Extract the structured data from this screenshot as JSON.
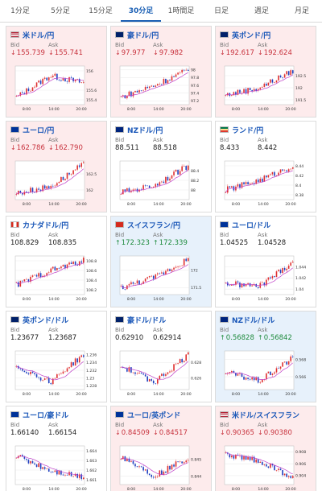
{
  "tabs": [
    {
      "label": "1分足",
      "active": false
    },
    {
      "label": "5分足",
      "active": false
    },
    {
      "label": "15分足",
      "active": false
    },
    {
      "label": "30分足",
      "active": true
    },
    {
      "label": "1時間足",
      "active": false
    },
    {
      "label": "日足",
      "active": false
    },
    {
      "label": "週足",
      "active": false
    },
    {
      "label": "月足",
      "active": false
    }
  ],
  "labels": {
    "bid": "Bid",
    "ask": "Ask"
  },
  "colors": {
    "down_bg": "#fdebec",
    "up_bg": "#e7f1fb",
    "down": "#c8333e",
    "up": "#1f8b3e",
    "ma": "#c040c8",
    "link": "#1a57b8"
  },
  "pairs": [
    {
      "name": "米ドル/円",
      "flag": "us-flag-icon",
      "state": "down",
      "bid": "155.739",
      "ask": "155.741",
      "chart": {
        "y_ticks": [
          "156",
          "155.6",
          "155.4"
        ],
        "x_ticks": [
          "8:00",
          "14:00",
          "20:00"
        ],
        "ylim": [
          155.3,
          156.1
        ],
        "trend": [
          155.45,
          155.9,
          155.75
        ],
        "ma": true
      }
    },
    {
      "name": "豪ドル/円",
      "flag": "au-flag-icon",
      "state": "down",
      "bid": "97.977",
      "ask": "97.982",
      "chart": {
        "y_ticks": [
          "98",
          "97.8",
          "97.6",
          "97.4",
          "97.2"
        ],
        "x_ticks": [
          "8:00",
          "14:00",
          "20:00"
        ],
        "ylim": [
          97.1,
          98.1
        ],
        "trend": [
          97.3,
          97.6,
          98.0
        ],
        "ma": true
      }
    },
    {
      "name": "英ポンド/円",
      "flag": "uk-flag-icon",
      "state": "down",
      "bid": "192.617",
      "ask": "192.624",
      "chart": {
        "y_ticks": [
          "192.5",
          "192",
          "191.5"
        ],
        "x_ticks": [
          "8:00",
          "14:00",
          "20:00"
        ],
        "ylim": [
          191.3,
          192.9
        ],
        "trend": [
          191.7,
          192.0,
          192.7
        ],
        "ma": true
      }
    },
    {
      "name": "ユーロ/円",
      "flag": "eu-flag-icon",
      "state": "down",
      "bid": "162.786",
      "ask": "162.790",
      "chart": {
        "y_ticks": [
          "162.5",
          "162"
        ],
        "x_ticks": [
          "8:00",
          "14:00",
          "20:00"
        ],
        "ylim": [
          161.7,
          162.9
        ],
        "trend": [
          161.9,
          162.1,
          162.8
        ],
        "ma": true
      }
    },
    {
      "name": "NZドル/円",
      "flag": "nz-flag-icon",
      "state": "flat",
      "bid": "88.511",
      "ask": "88.518",
      "chart": {
        "y_ticks": [
          "88.4",
          "88.2",
          "88"
        ],
        "x_ticks": [
          "8:00",
          "14:00",
          "20:00"
        ],
        "ylim": [
          87.8,
          88.6
        ],
        "trend": [
          87.95,
          88.1,
          88.5
        ],
        "ma": true
      }
    },
    {
      "name": "ランド/円",
      "flag": "za-flag-icon",
      "state": "flat",
      "bid": "8.433",
      "ask": "8.442",
      "chart": {
        "y_ticks": [
          "8.44",
          "8.42",
          "8.4",
          "8.38"
        ],
        "x_ticks": [
          "8:00",
          "14:00",
          "20:00"
        ],
        "ylim": [
          8.37,
          8.45
        ],
        "trend": [
          8.39,
          8.41,
          8.44
        ],
        "ma": true
      }
    },
    {
      "name": "カナダドル/円",
      "flag": "ca-flag-icon",
      "state": "flat",
      "bid": "108.829",
      "ask": "108.835",
      "chart": {
        "y_ticks": [
          "108.8",
          "108.6",
          "108.4",
          "108.2"
        ],
        "x_ticks": [
          "8:00",
          "14:00",
          "20:00"
        ],
        "ylim": [
          108.1,
          108.9
        ],
        "trend": [
          108.3,
          108.6,
          108.8
        ],
        "ma": true
      }
    },
    {
      "name": "スイスフラン/円",
      "flag": "ch-flag-icon",
      "state": "up",
      "bid": "172.323",
      "ask": "172.339",
      "chart": {
        "y_ticks": [
          "172",
          "171.5"
        ],
        "x_ticks": [
          "8:00",
          "14:00",
          "20:00"
        ],
        "ylim": [
          171.3,
          172.4
        ],
        "trend": [
          171.5,
          171.8,
          172.3
        ],
        "ma": true
      }
    },
    {
      "name": "ユーロ/ドル",
      "flag": "eu-us-flag-icon",
      "state": "flat",
      "bid": "1.04525",
      "ask": "1.04528",
      "chart": {
        "y_ticks": [
          "1.044",
          "1.042",
          "1.04"
        ],
        "x_ticks": [
          "8:00",
          "14:00",
          "20:00"
        ],
        "ylim": [
          1.039,
          1.046
        ],
        "trend": [
          1.041,
          1.0405,
          1.045
        ],
        "ma": true
      }
    },
    {
      "name": "英ポンド/ドル",
      "flag": "uk-us-flag-icon",
      "state": "flat",
      "bid": "1.23677",
      "ask": "1.23687",
      "chart": {
        "y_ticks": [
          "1.236",
          "1.234",
          "1.232",
          "1.23",
          "1.228"
        ],
        "x_ticks": [
          "8:00",
          "14:00",
          "20:00"
        ],
        "ylim": [
          1.227,
          1.237
        ],
        "trend": [
          1.233,
          1.229,
          1.236
        ],
        "ma": true
      }
    },
    {
      "name": "豪ドル/ドル",
      "flag": "au-us-flag-icon",
      "state": "flat",
      "bid": "0.62910",
      "ask": "0.62914",
      "chart": {
        "y_ticks": [
          "0.628",
          "0.626"
        ],
        "x_ticks": [
          "8:00",
          "14:00",
          "20:00"
        ],
        "ylim": [
          0.6245,
          0.6295
        ],
        "trend": [
          0.6275,
          0.6255,
          0.629
        ],
        "ma": true
      }
    },
    {
      "name": "NZドル/ドル",
      "flag": "nz-us-flag-icon",
      "state": "up",
      "bid": "0.56828",
      "ask": "0.56842",
      "chart": {
        "y_ticks": [
          "0.568",
          "0.566"
        ],
        "x_ticks": [
          "8:00",
          "14:00",
          "20:00"
        ],
        "ylim": [
          0.5645,
          0.569
        ],
        "trend": [
          0.5665,
          0.5655,
          0.5682
        ],
        "ma": true
      }
    },
    {
      "name": "ユーロ/豪ドル",
      "flag": "eu-au-flag-icon",
      "state": "flat",
      "bid": "1.66140",
      "ask": "1.66154",
      "chart": {
        "y_ticks": [
          "1.664",
          "1.663",
          "1.662",
          "1.661"
        ],
        "x_ticks": [
          "8:00",
          "14:00",
          "20:00"
        ],
        "ylim": [
          1.6605,
          1.6645
        ],
        "trend": [
          1.6635,
          1.662,
          1.6613
        ],
        "ma": true
      }
    },
    {
      "name": "ユーロ/英ポンド",
      "flag": "eu-uk-flag-icon",
      "state": "down",
      "bid": "0.84509",
      "ask": "0.84517",
      "chart": {
        "y_ticks": [
          "0.845",
          "0.844"
        ],
        "x_ticks": [
          "8:00",
          "14:00",
          "20:00"
        ],
        "ylim": [
          0.8435,
          0.8458
        ],
        "trend": [
          0.8452,
          0.844,
          0.8451
        ],
        "ma": true
      }
    },
    {
      "name": "米ドル/スイスフラン",
      "flag": "us-ch-flag-icon",
      "state": "down",
      "bid": "0.90365",
      "ask": "0.90380",
      "chart": {
        "y_ticks": [
          "0.908",
          "0.906",
          "0.904"
        ],
        "x_ticks": [
          "8:00",
          "14:00",
          "20:00"
        ],
        "ylim": [
          0.9025,
          0.909
        ],
        "trend": [
          0.9075,
          0.9065,
          0.9036
        ],
        "ma": true
      }
    }
  ]
}
